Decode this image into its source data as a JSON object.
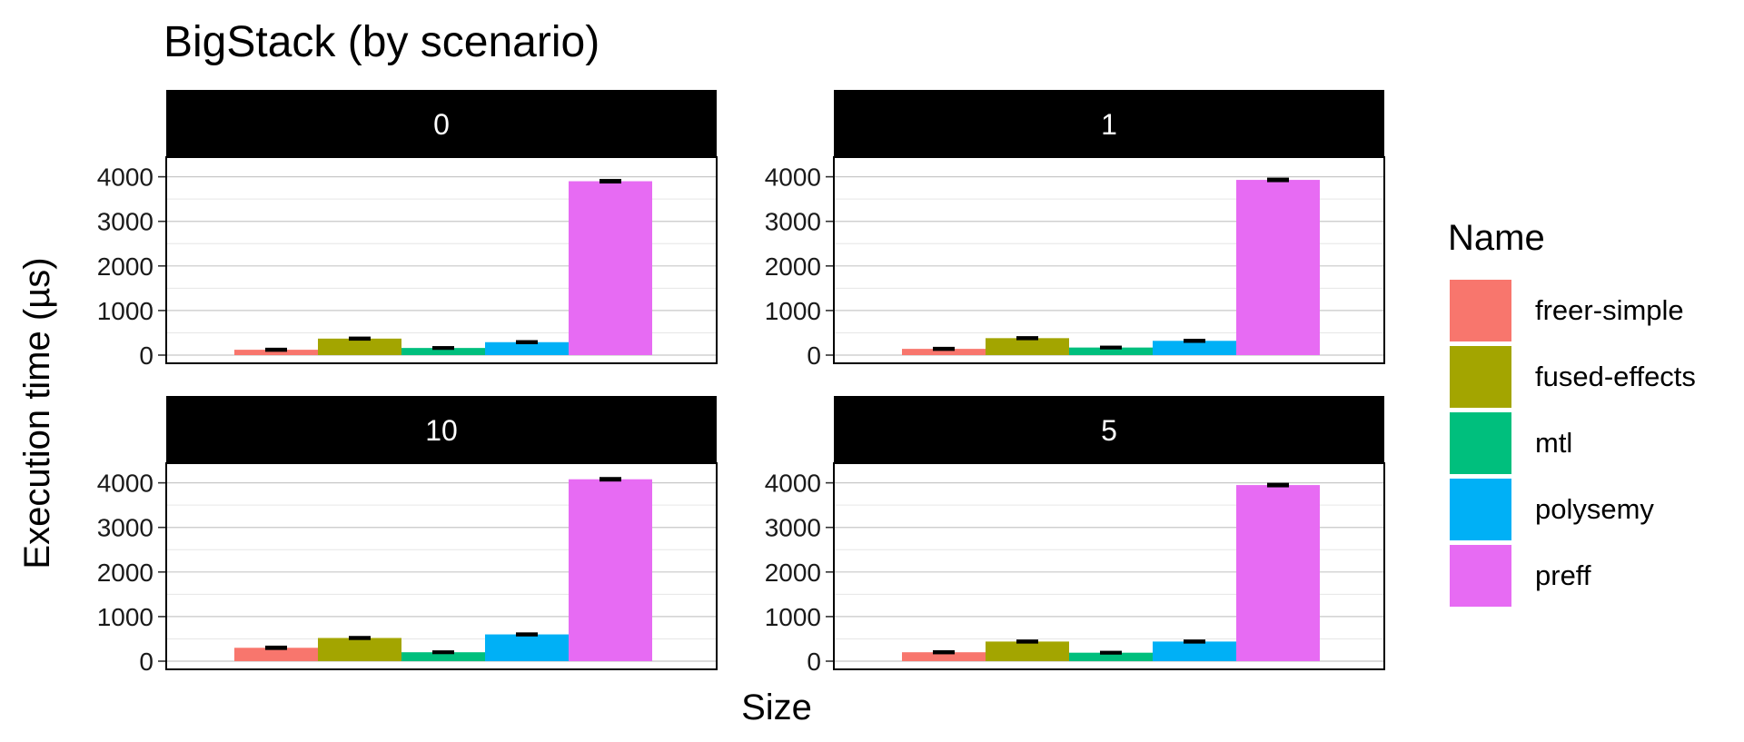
{
  "chart_data": {
    "type": "bar",
    "title": "BigStack (by scenario)",
    "xlabel": "Size",
    "ylabel": "Execution time (µs)",
    "ylim": [
      0,
      4400
    ],
    "yticks": [
      0,
      1000,
      2000,
      3000,
      4000
    ],
    "grid": true,
    "error_bars": true,
    "legend": {
      "title": "Name",
      "position": "right",
      "entries": [
        {
          "name": "freer-simple",
          "color": "#F8766D"
        },
        {
          "name": "fused-effects",
          "color": "#A3A500"
        },
        {
          "name": "mtl",
          "color": "#00BF7D"
        },
        {
          "name": "polysemy",
          "color": "#00B0F6"
        },
        {
          "name": "preff",
          "color": "#E76BF3"
        }
      ]
    },
    "categories": [
      "freer-simple",
      "fused-effects",
      "mtl",
      "polysemy",
      "preff"
    ],
    "facets": [
      {
        "label": "0",
        "values": [
          120,
          370,
          160,
          290,
          3900
        ],
        "errors": [
          15,
          15,
          12,
          15,
          20
        ]
      },
      {
        "label": "1",
        "values": [
          140,
          380,
          170,
          320,
          3930
        ],
        "errors": [
          15,
          15,
          12,
          15,
          20
        ]
      },
      {
        "label": "10",
        "values": [
          300,
          520,
          200,
          600,
          4080
        ],
        "errors": [
          18,
          15,
          12,
          15,
          20
        ]
      },
      {
        "label": "5",
        "values": [
          200,
          440,
          190,
          440,
          3950
        ],
        "errors": [
          15,
          15,
          12,
          15,
          20
        ]
      }
    ]
  }
}
